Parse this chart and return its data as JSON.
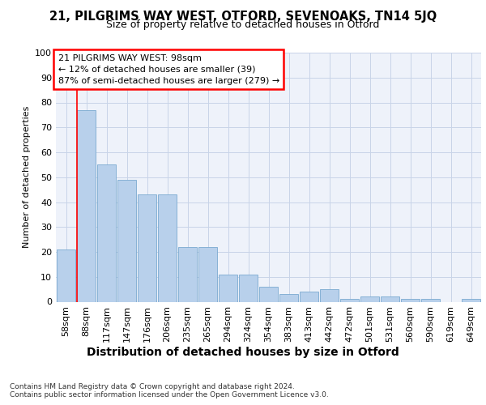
{
  "title1": "21, PILGRIMS WAY WEST, OTFORD, SEVENOAKS, TN14 5JQ",
  "title2": "Size of property relative to detached houses in Otford",
  "xlabel": "Distribution of detached houses by size in Otford",
  "ylabel": "Number of detached properties",
  "categories": [
    "58sqm",
    "88sqm",
    "117sqm",
    "147sqm",
    "176sqm",
    "206sqm",
    "235sqm",
    "265sqm",
    "294sqm",
    "324sqm",
    "354sqm",
    "383sqm",
    "413sqm",
    "442sqm",
    "472sqm",
    "501sqm",
    "531sqm",
    "560sqm",
    "590sqm",
    "619sqm",
    "649sqm"
  ],
  "values": [
    21,
    77,
    55,
    49,
    43,
    43,
    22,
    22,
    11,
    11,
    6,
    3,
    4,
    5,
    1,
    2,
    2,
    1,
    1,
    0,
    1
  ],
  "bar_color": "#b8d0eb",
  "bar_edge_color": "#7aaad0",
  "grid_color": "#c8d4e8",
  "background_color": "#eef2fa",
  "annotation_box_text": "21 PILGRIMS WAY WEST: 98sqm\n← 12% of detached houses are smaller (39)\n87% of semi-detached houses are larger (279) →",
  "annotation_box_color": "white",
  "annotation_box_edge_color": "red",
  "red_line_bar_index": 1,
  "footer_text": "Contains HM Land Registry data © Crown copyright and database right 2024.\nContains public sector information licensed under the Open Government Licence v3.0.",
  "ylim": [
    0,
    100
  ],
  "yticks": [
    0,
    10,
    20,
    30,
    40,
    50,
    60,
    70,
    80,
    90,
    100
  ],
  "title1_fontsize": 10.5,
  "title2_fontsize": 9,
  "ylabel_fontsize": 8,
  "xlabel_fontsize": 10,
  "tick_fontsize": 8,
  "ann_fontsize": 8,
  "footer_fontsize": 6.5
}
